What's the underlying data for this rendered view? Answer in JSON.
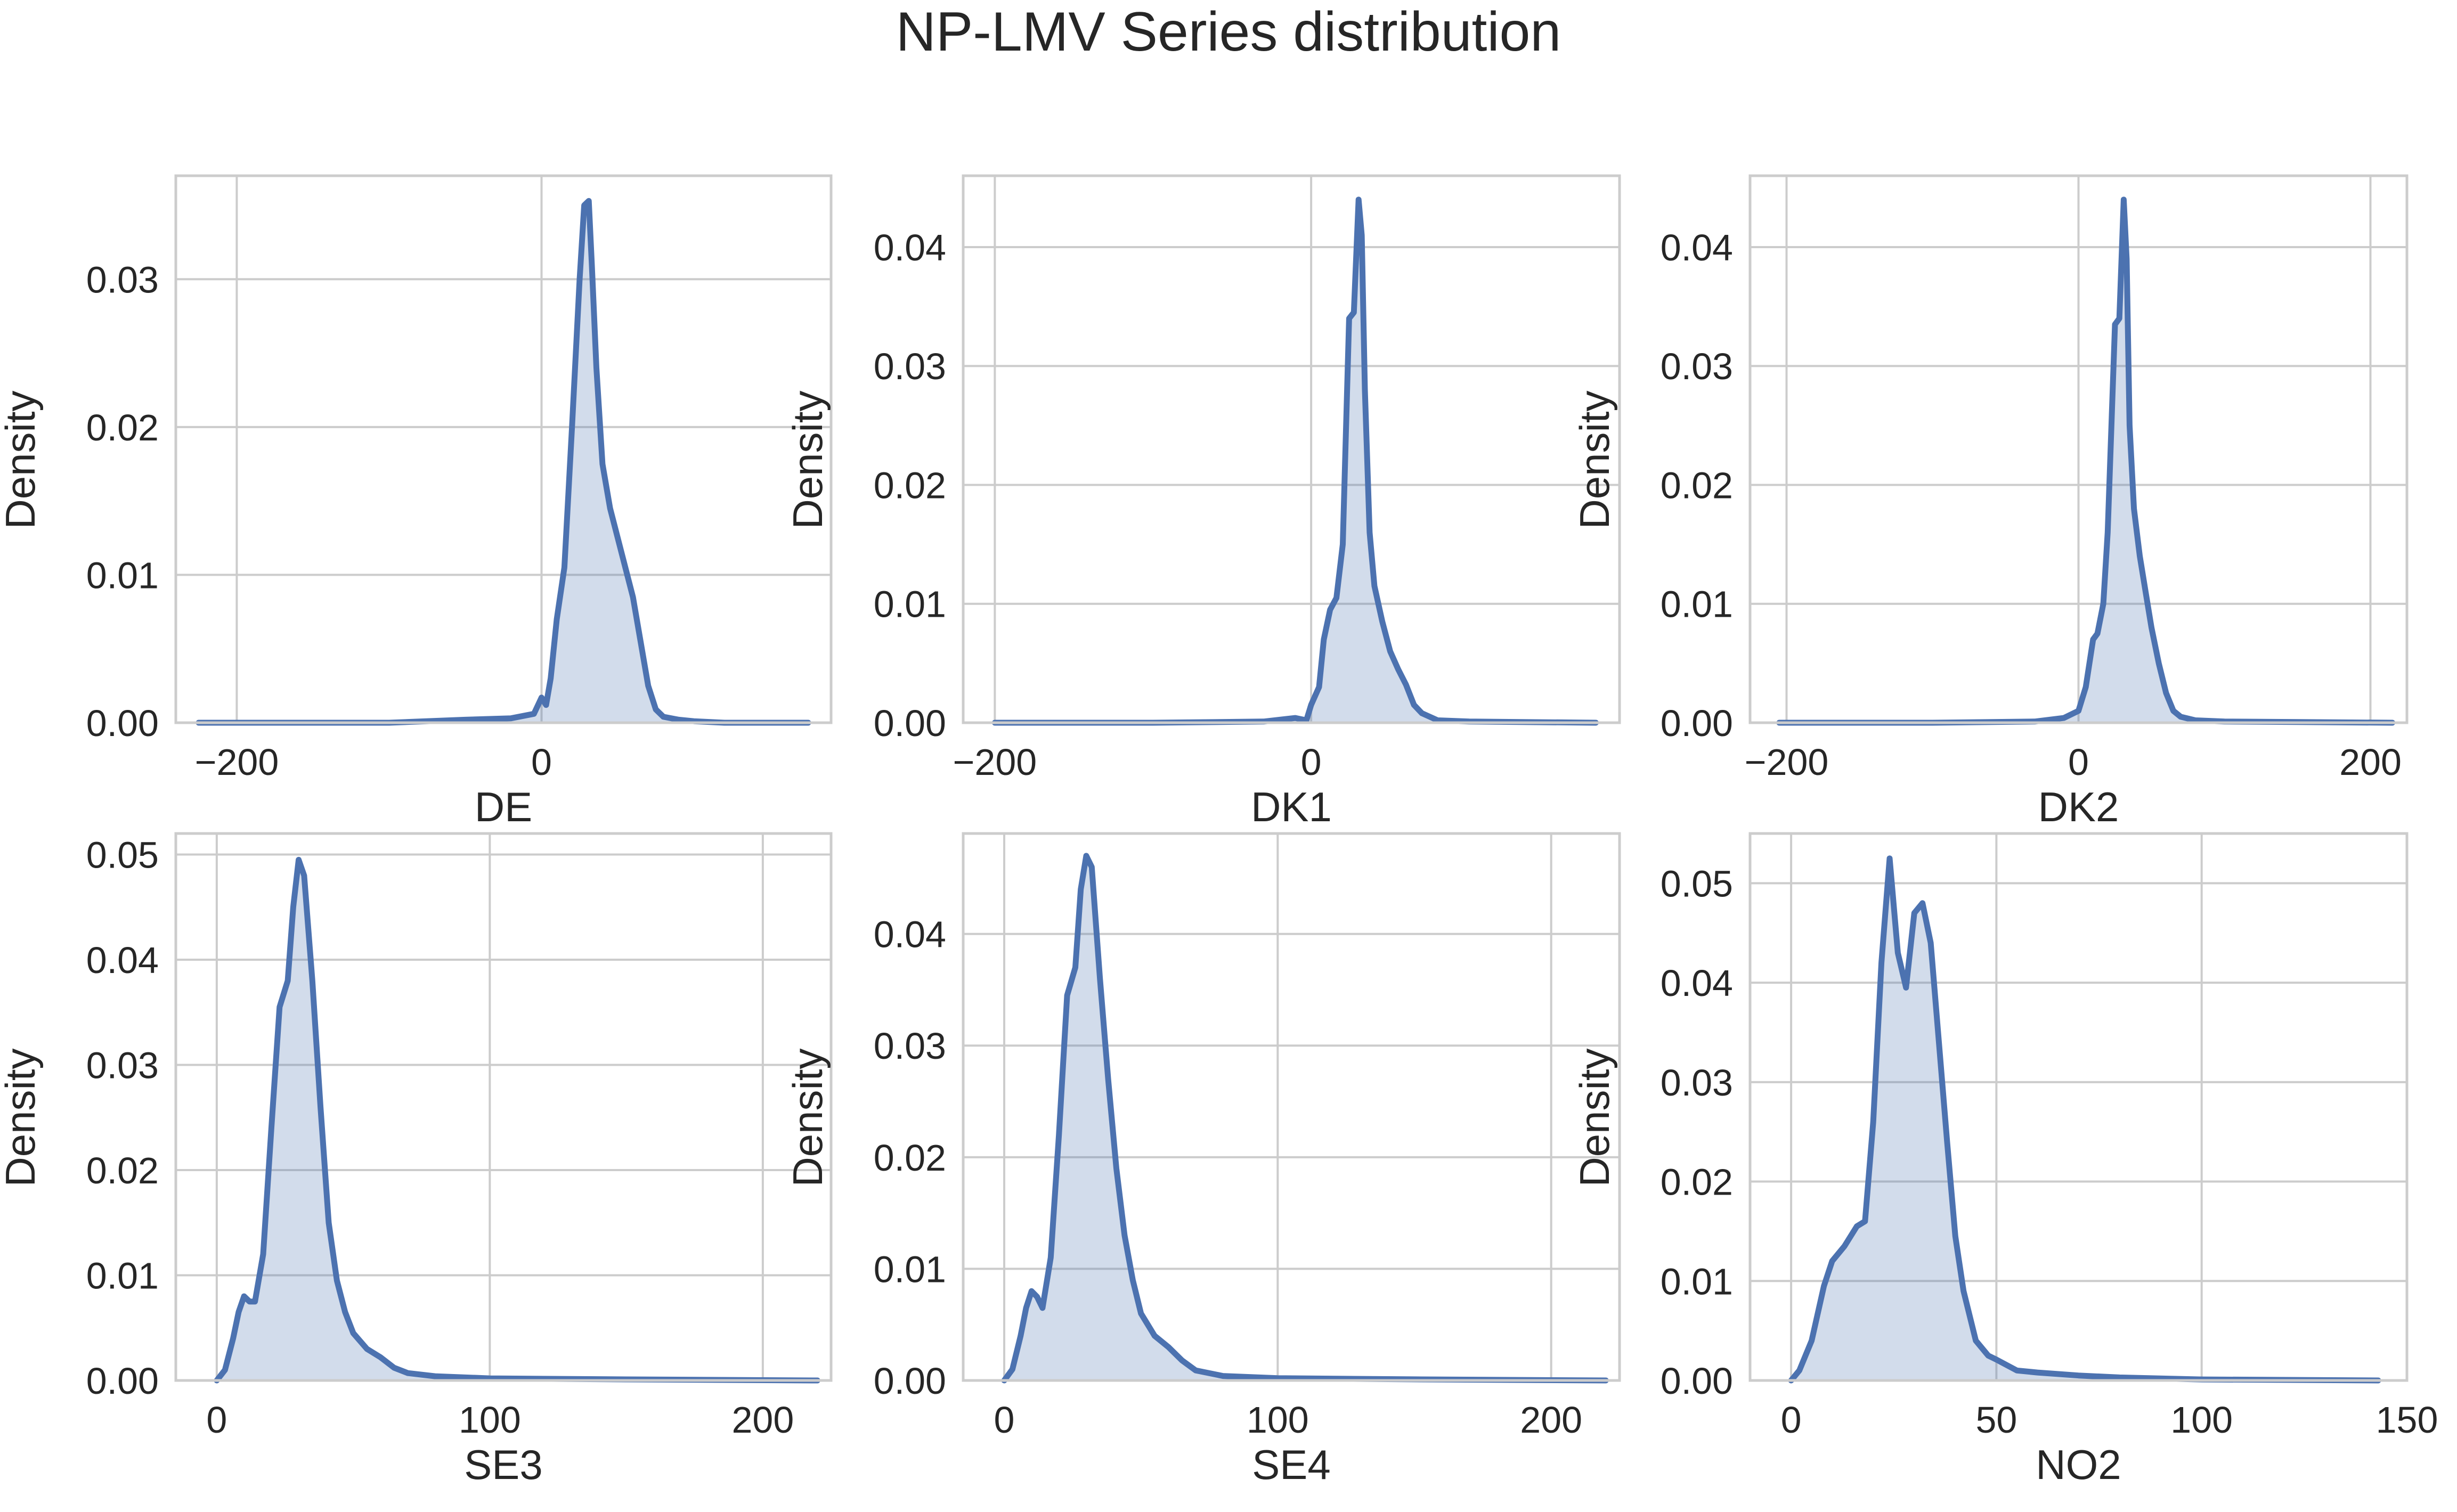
{
  "figure": {
    "title": "NP-LMV Series distribution",
    "line_color": "#4c72b0",
    "fill_color": "#4c72b0",
    "fill_opacity": 0.25,
    "grid_color": "#cccccc",
    "background": "#ffffff",
    "layout": "2x3 grid"
  },
  "chart_data": [
    {
      "type": "area",
      "title": "",
      "xlabel": "DE",
      "ylabel": "Density",
      "xlim": [
        -240,
        190
      ],
      "ylim": [
        0,
        0.037
      ],
      "xticks": [
        -200,
        0
      ],
      "yticks": [
        0.0,
        0.01,
        0.02,
        0.03
      ],
      "ytick_labels": [
        "0.00",
        "0.01",
        "0.02",
        "0.03"
      ],
      "grid": true,
      "legend": "none",
      "x": [
        -225,
        -100,
        -50,
        -20,
        -5,
        0,
        3,
        6,
        10,
        15,
        20,
        25,
        28,
        31,
        33,
        36,
        40,
        45,
        50,
        60,
        65,
        70,
        75,
        80,
        90,
        100,
        120,
        175
      ],
      "y": [
        0,
        0,
        0.0002,
        0.0003,
        0.0006,
        0.0017,
        0.0012,
        0.003,
        0.007,
        0.0105,
        0.02,
        0.03,
        0.035,
        0.0353,
        0.031,
        0.024,
        0.0175,
        0.0145,
        0.0125,
        0.0085,
        0.0055,
        0.0025,
        0.0009,
        0.0004,
        0.0002,
        0.0001,
        0,
        0
      ]
    },
    {
      "type": "area",
      "title": "",
      "xlabel": "DK1",
      "ylabel": "Density",
      "xlim": [
        -220,
        195
      ],
      "ylim": [
        0,
        0.046
      ],
      "xticks": [
        -200,
        0
      ],
      "yticks": [
        0.0,
        0.01,
        0.02,
        0.03,
        0.04
      ],
      "ytick_labels": [
        "0.00",
        "0.01",
        "0.02",
        "0.03",
        "0.04"
      ],
      "grid": true,
      "legend": "none",
      "x": [
        -200,
        -100,
        -30,
        -10,
        -3,
        0,
        5,
        8,
        12,
        16,
        20,
        24,
        27,
        30,
        32,
        34,
        37,
        40,
        45,
        50,
        55,
        60,
        65,
        70,
        80,
        100,
        180
      ],
      "y": [
        0,
        0,
        0.0001,
        0.0004,
        0.0002,
        0.0015,
        0.003,
        0.007,
        0.0095,
        0.0105,
        0.015,
        0.034,
        0.0345,
        0.044,
        0.041,
        0.028,
        0.016,
        0.0115,
        0.0085,
        0.006,
        0.0045,
        0.0032,
        0.0015,
        0.0008,
        0.0002,
        0.0001,
        0
      ]
    },
    {
      "type": "area",
      "title": "",
      "xlabel": "DK2",
      "ylabel": "Density",
      "xlim": [
        -225,
        225
      ],
      "ylim": [
        0,
        0.046
      ],
      "xticks": [
        -200,
        0,
        200
      ],
      "yticks": [
        0.0,
        0.01,
        0.02,
        0.03,
        0.04
      ],
      "ytick_labels": [
        "0.00",
        "0.01",
        "0.02",
        "0.03",
        "0.04"
      ],
      "grid": true,
      "legend": "none",
      "x": [
        -205,
        -100,
        -30,
        -10,
        0,
        5,
        10,
        13,
        17,
        20,
        25,
        28,
        31,
        33,
        35,
        38,
        42,
        46,
        50,
        55,
        60,
        65,
        70,
        80,
        100,
        215
      ],
      "y": [
        0,
        0,
        0.0001,
        0.0004,
        0.001,
        0.003,
        0.007,
        0.0075,
        0.01,
        0.016,
        0.0335,
        0.034,
        0.044,
        0.039,
        0.025,
        0.018,
        0.014,
        0.011,
        0.008,
        0.005,
        0.0025,
        0.001,
        0.0005,
        0.0002,
        0.0001,
        0
      ]
    },
    {
      "type": "area",
      "title": "",
      "xlabel": "SE3",
      "ylabel": "Density",
      "xlim": [
        -15,
        225
      ],
      "ylim": [
        0,
        0.052
      ],
      "xticks": [
        0,
        100,
        200
      ],
      "yticks": [
        0.0,
        0.01,
        0.02,
        0.03,
        0.04,
        0.05
      ],
      "ytick_labels": [
        "0.00",
        "0.01",
        "0.02",
        "0.03",
        "0.04",
        "0.05"
      ],
      "grid": true,
      "legend": "none",
      "x": [
        0,
        3,
        6,
        8,
        10,
        12,
        14,
        17,
        20,
        23,
        26,
        28,
        30,
        32,
        35,
        38,
        41,
        44,
        47,
        50,
        55,
        60,
        65,
        70,
        80,
        100,
        150,
        220
      ],
      "y": [
        0,
        0.001,
        0.004,
        0.0065,
        0.008,
        0.0075,
        0.0075,
        0.012,
        0.024,
        0.0355,
        0.038,
        0.045,
        0.0495,
        0.048,
        0.038,
        0.026,
        0.015,
        0.0095,
        0.0065,
        0.0045,
        0.003,
        0.0022,
        0.0012,
        0.0007,
        0.0004,
        0.0002,
        0.0001,
        0
      ]
    },
    {
      "type": "area",
      "title": "",
      "xlabel": "SE4",
      "ylabel": "Density",
      "xlim": [
        -15,
        225
      ],
      "ylim": [
        0,
        0.049
      ],
      "xticks": [
        0,
        100,
        200
      ],
      "yticks": [
        0.0,
        0.01,
        0.02,
        0.03,
        0.04
      ],
      "ytick_labels": [
        "0.00",
        "0.01",
        "0.02",
        "0.03",
        "0.04"
      ],
      "grid": true,
      "legend": "none",
      "x": [
        0,
        3,
        6,
        8,
        10,
        12,
        14,
        17,
        20,
        23,
        26,
        28,
        30,
        32,
        35,
        38,
        41,
        44,
        47,
        50,
        55,
        60,
        65,
        70,
        80,
        100,
        150,
        220
      ],
      "y": [
        0,
        0.001,
        0.004,
        0.0065,
        0.008,
        0.0075,
        0.0065,
        0.011,
        0.022,
        0.0345,
        0.037,
        0.044,
        0.047,
        0.046,
        0.036,
        0.027,
        0.019,
        0.013,
        0.009,
        0.006,
        0.004,
        0.003,
        0.0018,
        0.0009,
        0.0004,
        0.0002,
        0.0001,
        0
      ]
    },
    {
      "type": "area",
      "title": "",
      "xlabel": "NO2",
      "ylabel": "Density",
      "xlim": [
        -10,
        150
      ],
      "ylim": [
        0,
        0.055
      ],
      "xticks": [
        0,
        50,
        100,
        150
      ],
      "yticks": [
        0.0,
        0.01,
        0.02,
        0.03,
        0.04,
        0.05
      ],
      "ytick_labels": [
        "0.00",
        "0.01",
        "0.02",
        "0.03",
        "0.04",
        "0.05"
      ],
      "grid": true,
      "legend": "none",
      "x": [
        0,
        2,
        5,
        8,
        10,
        13,
        16,
        18,
        20,
        22,
        24,
        26,
        28,
        30,
        32,
        34,
        36,
        38,
        40,
        42,
        45,
        48,
        50,
        55,
        60,
        70,
        80,
        100,
        143
      ],
      "y": [
        0,
        0.001,
        0.004,
        0.0095,
        0.012,
        0.0135,
        0.0155,
        0.016,
        0.026,
        0.042,
        0.0525,
        0.043,
        0.0395,
        0.047,
        0.048,
        0.044,
        0.034,
        0.024,
        0.0145,
        0.009,
        0.004,
        0.0025,
        0.0021,
        0.001,
        0.0008,
        0.0005,
        0.0003,
        0.0001,
        0
      ]
    }
  ]
}
